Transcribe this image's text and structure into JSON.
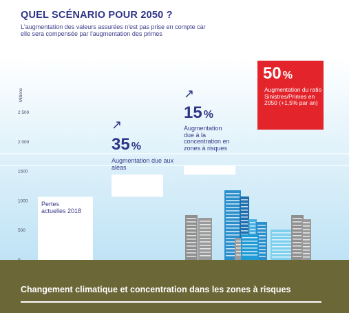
{
  "title": "QUEL SCÉNARIO POUR 2050 ?",
  "subtitle": "L'augmentation des valeurs assurées n'est pas prise en compte car elle sera compensée par l'augmentation des primes",
  "footer_title": "Changement climatique et concentration dans les zones à risques",
  "colors": {
    "accent": "#2e3486",
    "highlight": "#e3242b",
    "ground": "#6b6737",
    "sky": "#bfe3f5"
  },
  "icons": {
    "increase_arrow": "arrow-up-right-icon",
    "skyline": "city-buildings-icon"
  },
  "steps": [
    {
      "id": "base",
      "label": "Pertes actuelles 2018"
    },
    {
      "id": "hazards",
      "percent_value": "35",
      "percent_sign": "%",
      "arrow": "↗",
      "description": "Augmentation due aux aléas"
    },
    {
      "id": "concentration",
      "percent_value": "15",
      "percent_sign": "%",
      "arrow": "↗",
      "description": "Augmentation due à la concentration en zones à risques"
    },
    {
      "id": "ratio",
      "percent_value": "50",
      "percent_sign": "%",
      "description": "Augmentation du ratio Sinistres/Primes en 2050 (+1,5% par an)"
    }
  ],
  "chart_data": {
    "type": "bar",
    "subtype": "waterfall",
    "ylabel": "Millions",
    "ylim": [
      0,
      3000
    ],
    "yticks": [
      0,
      500,
      1000,
      1500,
      2000,
      2500
    ],
    "ytick_labels": [
      "0",
      "500",
      "1000",
      "1500",
      "2 000",
      "2 500"
    ],
    "grid": true,
    "gridlines": [
      1600,
      1800
    ],
    "bars": [
      {
        "label": "Pertes actuelles 2018",
        "start": 0,
        "end": 1070
      },
      {
        "label": "Augmentation due aux aléas",
        "percent": "35%",
        "start": 1070,
        "end": 1445
      },
      {
        "label": "Augmentation due à la concentration en zones à risques",
        "percent": "15%",
        "start": 1445,
        "end": 1605
      }
    ]
  }
}
